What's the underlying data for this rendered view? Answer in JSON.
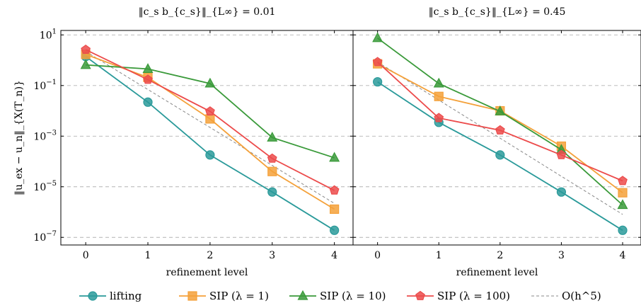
{
  "chart_data": [
    {
      "type": "line",
      "title": "‖c_s b_{c_s}‖_{L∞} = 0.01",
      "xlabel": "refinement level",
      "ylabel": "‖u_ex − u_n‖_{X(T_n)}",
      "x": [
        0,
        1,
        2,
        3,
        4
      ],
      "xlim": [
        -0.4,
        4.3
      ],
      "ylim": [
        5e-08,
        15
      ],
      "yscale": "log",
      "yticks": [
        "10^1",
        "10^-1",
        "10^-3",
        "10^-5",
        "10^-7"
      ],
      "grid": "horizontal-dashed",
      "series": [
        {
          "name": "lifting",
          "values": [
            1.4,
            0.022,
            0.00018,
            6.2e-06,
            1.9e-07
          ]
        },
        {
          "name": "SIP (λ = 1)",
          "values": [
            1.7,
            0.21,
            0.0048,
            4e-05,
            1.3e-06
          ]
        },
        {
          "name": "SIP (λ = 10)",
          "values": [
            0.65,
            0.45,
            0.12,
            0.00088,
            0.00014
          ]
        },
        {
          "name": "SIP (λ = 100)",
          "values": [
            2.6,
            0.17,
            0.0095,
            0.00013,
            7.2e-06
          ]
        },
        {
          "name": "O(h^5)",
          "values": [
            2.2,
            0.069,
            0.0022,
            6.9e-05,
            2.2e-06
          ]
        }
      ]
    },
    {
      "type": "line",
      "title": "‖c_s b_{c_s}‖_{L∞} = 0.45",
      "xlabel": "refinement level",
      "ylabel": "",
      "x": [
        0,
        1,
        2,
        3,
        4
      ],
      "xlim": [
        -0.4,
        4.3
      ],
      "ylim": [
        5e-08,
        15
      ],
      "yscale": "log",
      "grid": "horizontal-dashed",
      "series": [
        {
          "name": "lifting",
          "values": [
            0.14,
            0.0035,
            0.00018,
            6.2e-06,
            1.9e-07
          ]
        },
        {
          "name": "SIP (λ = 1)",
          "values": [
            0.72,
            0.037,
            0.01,
            0.0004,
            5.8e-06
          ]
        },
        {
          "name": "SIP (λ = 10)",
          "values": [
            7.5,
            0.12,
            0.0095,
            0.00029,
            1.9e-06
          ]
        },
        {
          "name": "SIP (λ = 100)",
          "values": [
            0.85,
            0.0052,
            0.0017,
            0.00018,
            1.7e-05
          ]
        },
        {
          "name": "O(h^5)",
          "values": [
            0.85,
            0.0266,
            0.00083,
            2.6e-05,
            8.1e-07
          ]
        }
      ]
    }
  ],
  "styles": {
    "lifting": {
      "color": "#2a9a9a",
      "marker": "circle"
    },
    "SIP (λ = 1)": {
      "color": "#f4a13a",
      "marker": "square"
    },
    "SIP (λ = 10)": {
      "color": "#3a9a3a",
      "marker": "triangle"
    },
    "SIP (λ = 100)": {
      "color": "#ec4b4b",
      "marker": "pentagon"
    },
    "O(h^5)": {
      "color": "#888888",
      "marker": "none",
      "dash": "dashed"
    }
  },
  "legend": {
    "placement": "bottom-center",
    "items": [
      "lifting",
      "SIP (λ = 1)",
      "SIP (λ = 10)",
      "SIP (λ = 100)",
      "O(h^5)"
    ]
  }
}
